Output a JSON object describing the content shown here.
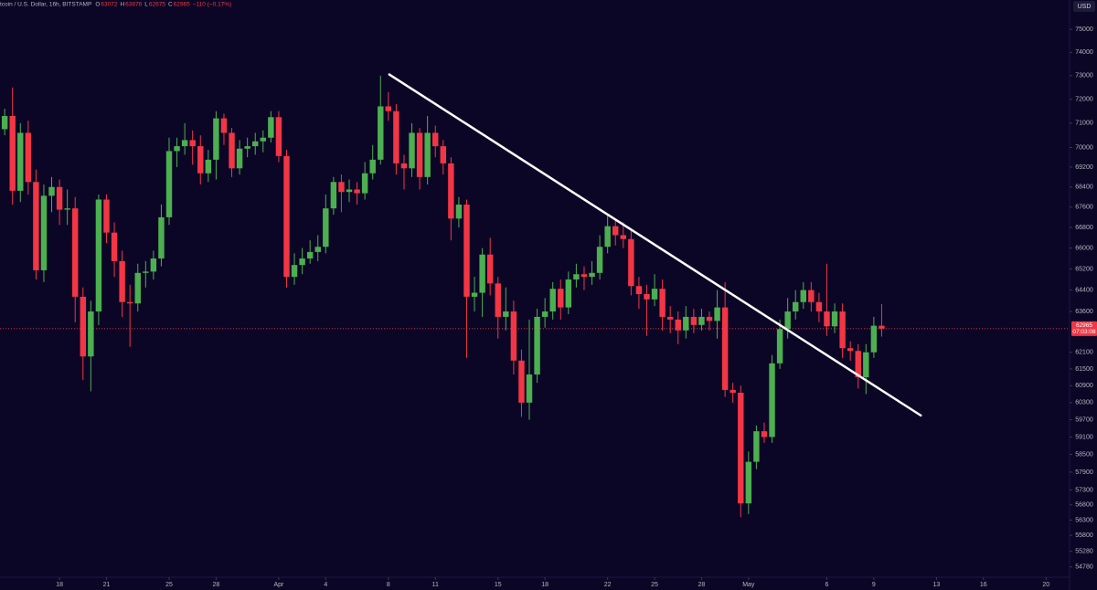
{
  "chart_data": {
    "type": "candlestick",
    "header": {
      "symbol": "tcoin / U.S. Dollar, 16h, BITSTAMP",
      "ohlc": [
        {
          "label": "O",
          "value": 63072
        },
        {
          "label": "H",
          "value": 63876
        },
        {
          "label": "L",
          "value": 62675
        },
        {
          "label": "C",
          "value": 62965
        }
      ],
      "change": "−110 (−0.17%)"
    },
    "currency": "USD",
    "last_price": 62965,
    "countdown": "07:03:08",
    "up_color": "#4caf50",
    "down_color": "#f23645",
    "log_scale": true,
    "grid": false,
    "xlim": [
      -3.8,
      64.5
    ],
    "xticks": [
      {
        "value": 0,
        "label": "18"
      },
      {
        "value": 3,
        "label": "21"
      },
      {
        "value": 7,
        "label": "25"
      },
      {
        "value": 10,
        "label": "28"
      },
      {
        "value": 14,
        "label": "Apr"
      },
      {
        "value": 17,
        "label": "4"
      },
      {
        "value": 21,
        "label": "8"
      },
      {
        "value": 24,
        "label": "11"
      },
      {
        "value": 28,
        "label": "15"
      },
      {
        "value": 31,
        "label": "18"
      },
      {
        "value": 35,
        "label": "22"
      },
      {
        "value": 38,
        "label": "25"
      },
      {
        "value": 41,
        "label": "28"
      },
      {
        "value": 44,
        "label": "May"
      },
      {
        "value": 49,
        "label": "6"
      },
      {
        "value": 52,
        "label": "9"
      },
      {
        "value": 56,
        "label": "13"
      },
      {
        "value": 59,
        "label": "16"
      },
      {
        "value": 63,
        "label": "20"
      }
    ],
    "ylim": [
      54450,
      76300
    ],
    "yticks": [
      75000,
      74000,
      73000,
      72000,
      71000,
      70000,
      69200,
      68400,
      67600,
      66800,
      66000,
      65200,
      64400,
      63600,
      62100,
      61500,
      60900,
      60300,
      59700,
      59100,
      58500,
      57900,
      57300,
      56800,
      56300,
      55800,
      55280,
      54780
    ],
    "trendline": {
      "x": [
        21.06,
        55.0
      ],
      "y": [
        73050,
        59850
      ]
    },
    "series": [
      {
        "x": [
          -3.5,
          -3,
          -2.5,
          -2,
          -1.5,
          -1,
          -0.5,
          0,
          0.5,
          1,
          1.5,
          2,
          2.5,
          3,
          3.5,
          4,
          4.5,
          5,
          5.5,
          6,
          6.5,
          7,
          7.5,
          8,
          8.5,
          9,
          9.5,
          10,
          10.5,
          11,
          11.5,
          12,
          12.5,
          13,
          13.5,
          14,
          14.5,
          15,
          15.5,
          16,
          16.5,
          17,
          17.5,
          18,
          18.5,
          19,
          19.5,
          20,
          20.5,
          21,
          21.5,
          22,
          22.5,
          23,
          23.5,
          24,
          24.5,
          25,
          25.5,
          26,
          26.5,
          27,
          27.5,
          28,
          28.5,
          29,
          29.5,
          30,
          30.5,
          31,
          31.5,
          32,
          32.5,
          33,
          33.5,
          34,
          34.5,
          35,
          35.5,
          36,
          36.5,
          37,
          37.5,
          38,
          38.5,
          39,
          39.5,
          40,
          40.5,
          41,
          41.5,
          42,
          42.5,
          43,
          43.5,
          44,
          44.5,
          45,
          45.5,
          46,
          46.5,
          47,
          47.5,
          48,
          48.5,
          49,
          49.5,
          50,
          50.5,
          51,
          51.5,
          52,
          52.5
        ],
        "open": [
          70750,
          71300,
          68250,
          70600,
          68600,
          65150,
          68050,
          68400,
          67500,
          67550,
          64150,
          61950,
          63600,
          67900,
          66600,
          65500,
          63950,
          63900,
          65050,
          65100,
          65600,
          67200,
          69850,
          70050,
          70300,
          70050,
          68950,
          69500,
          71200,
          70600,
          69150,
          69950,
          70050,
          70250,
          70400,
          71250,
          69650,
          64900,
          65350,
          65600,
          65850,
          66050,
          67550,
          68600,
          68200,
          68300,
          68150,
          68950,
          69500,
          71700,
          71500,
          69350,
          69150,
          70600,
          68800,
          70600,
          70050,
          69350,
          67150,
          67700,
          64150,
          64300,
          65750,
          64650,
          63400,
          63600,
          61800,
          60300,
          61300,
          63400,
          63600,
          64450,
          63750,
          64800,
          65000,
          64900,
          65050,
          66050,
          66850,
          66500,
          66350,
          64550,
          64250,
          64050,
          64450,
          63400,
          63300,
          62900,
          63400,
          63100,
          63400,
          63250,
          63750,
          60750,
          60650,
          56850,
          58250,
          59300,
          59100,
          61700,
          62950,
          63600,
          63950,
          64400,
          63950,
          63600,
          63050,
          63600,
          62250,
          62150,
          61200,
          62100,
          63072
        ],
        "high": [
          71600,
          72500,
          71000,
          71100,
          69100,
          68500,
          68800,
          68700,
          68300,
          68000,
          64500,
          64000,
          68100,
          68100,
          67000,
          65900,
          64600,
          65400,
          65500,
          65900,
          67700,
          70400,
          70400,
          71000,
          70700,
          70500,
          69900,
          71500,
          71400,
          70800,
          70300,
          70400,
          70600,
          70700,
          71500,
          71500,
          69900,
          65800,
          66000,
          66300,
          66500,
          68100,
          68800,
          68900,
          68700,
          68600,
          69400,
          70100,
          73000,
          72300,
          71800,
          69700,
          71000,
          70800,
          71300,
          70900,
          70300,
          69600,
          68000,
          67900,
          64900,
          66000,
          66400,
          64900,
          64500,
          64000,
          62200,
          63300,
          63700,
          64100,
          64700,
          64800,
          65100,
          65400,
          65300,
          65500,
          66500,
          67300,
          67100,
          67000,
          66700,
          64900,
          64600,
          65000,
          64800,
          63800,
          63600,
          63800,
          63700,
          63700,
          63600,
          64400,
          64700,
          61000,
          60900,
          58600,
          59500,
          59600,
          62000,
          63300,
          64100,
          64400,
          64700,
          64700,
          64300,
          65400,
          63900,
          63900,
          62500,
          62400,
          62400,
          63400,
          63876
        ],
        "low": [
          70500,
          67700,
          67800,
          68100,
          64800,
          64700,
          67400,
          66900,
          66900,
          63200,
          61100,
          60700,
          63100,
          66200,
          64900,
          63400,
          62300,
          63600,
          64500,
          64800,
          65300,
          66900,
          69200,
          69700,
          69300,
          68500,
          68600,
          68700,
          70100,
          68800,
          68900,
          69600,
          69700,
          69800,
          70200,
          69400,
          64500,
          64600,
          65000,
          65400,
          65500,
          65800,
          67300,
          67400,
          67800,
          67700,
          67900,
          68700,
          69300,
          71100,
          68900,
          68300,
          68800,
          68300,
          68500,
          69600,
          68900,
          66300,
          66800,
          61900,
          63600,
          63400,
          64200,
          62600,
          62900,
          61300,
          59800,
          59700,
          61000,
          63000,
          63300,
          63300,
          63500,
          64500,
          64400,
          64600,
          64800,
          65800,
          66100,
          66000,
          64200,
          63700,
          62700,
          63800,
          62900,
          62800,
          62400,
          62600,
          62800,
          62900,
          62900,
          62600,
          60500,
          60300,
          56400,
          56500,
          58000,
          58900,
          58900,
          61500,
          62600,
          63300,
          63700,
          63600,
          63200,
          62700,
          62800,
          61900,
          61800,
          60800,
          60600,
          61900,
          62675
        ],
        "close": [
          71300,
          68250,
          70600,
          68600,
          65150,
          68050,
          68400,
          67500,
          67550,
          64150,
          61950,
          63600,
          67900,
          66600,
          65500,
          63950,
          63900,
          65050,
          65100,
          65600,
          67200,
          69850,
          70050,
          70300,
          70050,
          68950,
          69500,
          71200,
          70600,
          69150,
          69950,
          70050,
          70250,
          70400,
          71250,
          69650,
          64900,
          65350,
          65600,
          65850,
          66050,
          67550,
          68600,
          68200,
          68300,
          68150,
          68950,
          69500,
          71700,
          71500,
          69350,
          69150,
          70600,
          68800,
          70600,
          70050,
          69350,
          67150,
          67700,
          64150,
          64300,
          65750,
          64650,
          63400,
          63600,
          61800,
          60300,
          61300,
          63400,
          63600,
          64450,
          63750,
          64800,
          65000,
          64900,
          65050,
          66050,
          66850,
          66500,
          66350,
          64550,
          64250,
          64050,
          64450,
          63400,
          63300,
          62900,
          63400,
          63100,
          63400,
          63250,
          63750,
          60750,
          60650,
          56850,
          58250,
          59300,
          59100,
          61700,
          62950,
          63600,
          63950,
          64400,
          63950,
          63600,
          63050,
          63600,
          62250,
          62150,
          61200,
          62100,
          63072,
          62965
        ]
      }
    ]
  }
}
